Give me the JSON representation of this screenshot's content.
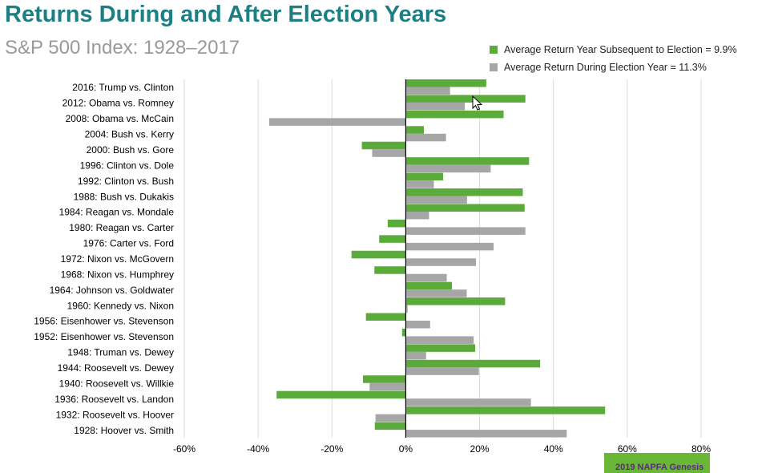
{
  "title": "Returns During and After Election Years",
  "subtitle": "S&P 500 Index: 1928–2017",
  "legend": {
    "subsequent": "Average Return Year Subsequent to Election = 9.9%",
    "election": "Average Return During Election Year = 11.3%"
  },
  "colors": {
    "subsequent": "#5aab3a",
    "election": "#a6a6a6",
    "title": "#1b7f84"
  },
  "footer": {
    "badge": "2019 NAPFA Genesis"
  },
  "chart_data": {
    "type": "bar",
    "orientation": "horizontal",
    "categories": [
      "2016: Trump vs. Clinton",
      "2012: Obama vs. Romney",
      "2008: Obama vs. McCain",
      "2004: Bush vs. Kerry",
      "2000: Bush vs. Gore",
      "1996: Clinton vs. Dole",
      "1992: Clinton vs. Bush",
      "1988: Bush vs. Dukakis",
      "1984: Reagan vs. Mondale",
      "1980: Reagan vs. Carter",
      "1976: Carter vs. Ford",
      "1972: Nixon vs. McGovern",
      "1968: Nixon vs. Humphrey",
      "1964: Johnson vs. Goldwater",
      "1960: Kennedy vs. Nixon",
      "1956: Eisenhower vs. Stevenson",
      "1952: Eisenhower vs. Stevenson",
      "1948: Truman vs. Dewey",
      "1944: Roosevelt vs. Dewey",
      "1940: Roosevelt vs. Willkie",
      "1936: Roosevelt vs. Landon",
      "1932: Roosevelt vs. Hoover",
      "1928: Hoover vs. Smith"
    ],
    "series": [
      {
        "name": "Average Return Year Subsequent to Election = 9.9%",
        "key": "subsequent",
        "values": [
          21.8,
          32.4,
          26.5,
          4.9,
          -11.9,
          33.4,
          10.1,
          31.7,
          32.2,
          -4.9,
          -7.2,
          -14.7,
          -8.5,
          12.5,
          26.9,
          -10.8,
          -1.0,
          18.8,
          36.4,
          -11.6,
          -35.0,
          54.0,
          -8.4
        ]
      },
      {
        "name": "Average Return During Election Year = 11.3%",
        "key": "election",
        "values": [
          12.0,
          16.0,
          -37.0,
          10.9,
          -9.1,
          23.0,
          7.6,
          16.6,
          6.3,
          32.4,
          23.8,
          19.0,
          11.1,
          16.5,
          0.5,
          6.6,
          18.4,
          5.5,
          19.8,
          -9.8,
          33.9,
          -8.2,
          43.6
        ]
      }
    ],
    "xlim": [
      -60,
      80
    ],
    "xticks": [
      -60,
      -40,
      -20,
      0,
      20,
      40,
      60,
      80
    ],
    "tick_suffix": "%",
    "grid": true,
    "legend_position": "top-right"
  }
}
